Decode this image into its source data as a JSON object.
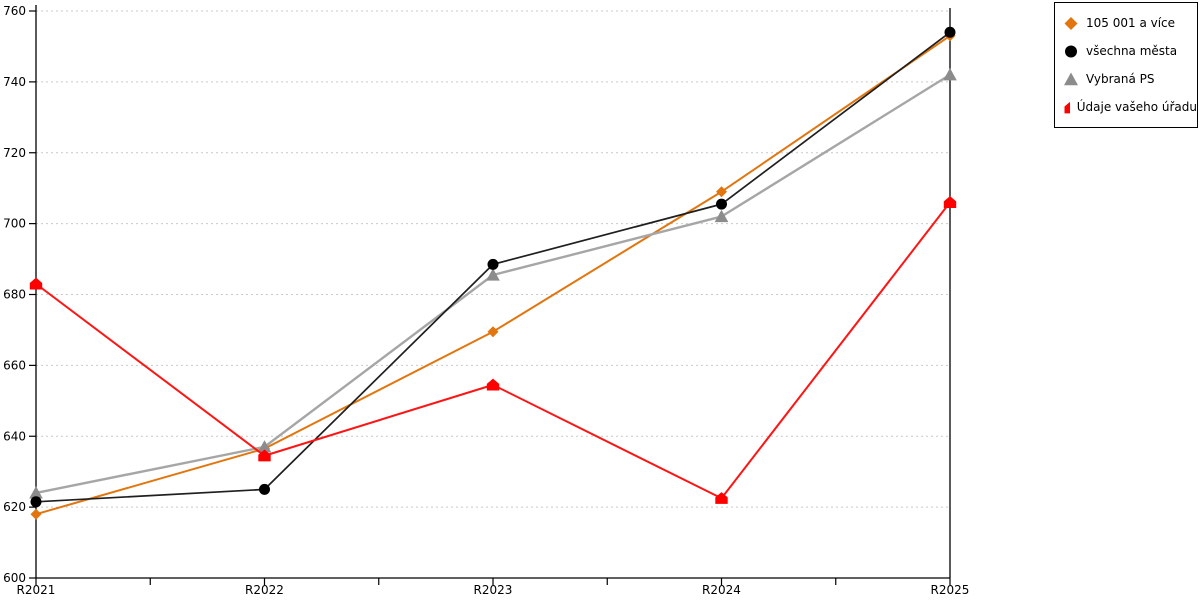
{
  "chart_data": {
    "type": "line",
    "title": "",
    "xlabel": "",
    "ylabel": "",
    "categories": [
      "R2021",
      "R2022",
      "R2023",
      "R2024",
      "R2025"
    ],
    "series": [
      {
        "name": "105 001 a více",
        "marker": "diamond",
        "color": "#e2750d",
        "line_color": "#e2750d",
        "values": [
          618,
          636.5,
          669.5,
          709,
          753
        ]
      },
      {
        "name": "všechna města",
        "marker": "circle",
        "color": "#000000",
        "line_color": "#1f1f1f",
        "values": [
          621.5,
          625,
          688.5,
          705.5,
          754
        ]
      },
      {
        "name": "Vybraná PS",
        "marker": "triangle",
        "color": "#8c8c8c",
        "line_color": "#a6a6a6",
        "values": [
          624,
          637,
          685.5,
          702,
          742
        ]
      },
      {
        "name": "Údaje vašeho úřadu",
        "marker": "pentagon",
        "color": "#ff0000",
        "line_color": "#ff1414",
        "values": [
          683,
          634.5,
          654.5,
          622.5,
          706
        ]
      }
    ],
    "ylim": [
      600,
      760
    ],
    "yticks": [
      600,
      620,
      640,
      660,
      680,
      700,
      720,
      740,
      760
    ],
    "grid": "horizontal-dashed",
    "gridline_color": "#c9c9c9",
    "axis_color": "#000000",
    "legend_position": "top-right"
  }
}
